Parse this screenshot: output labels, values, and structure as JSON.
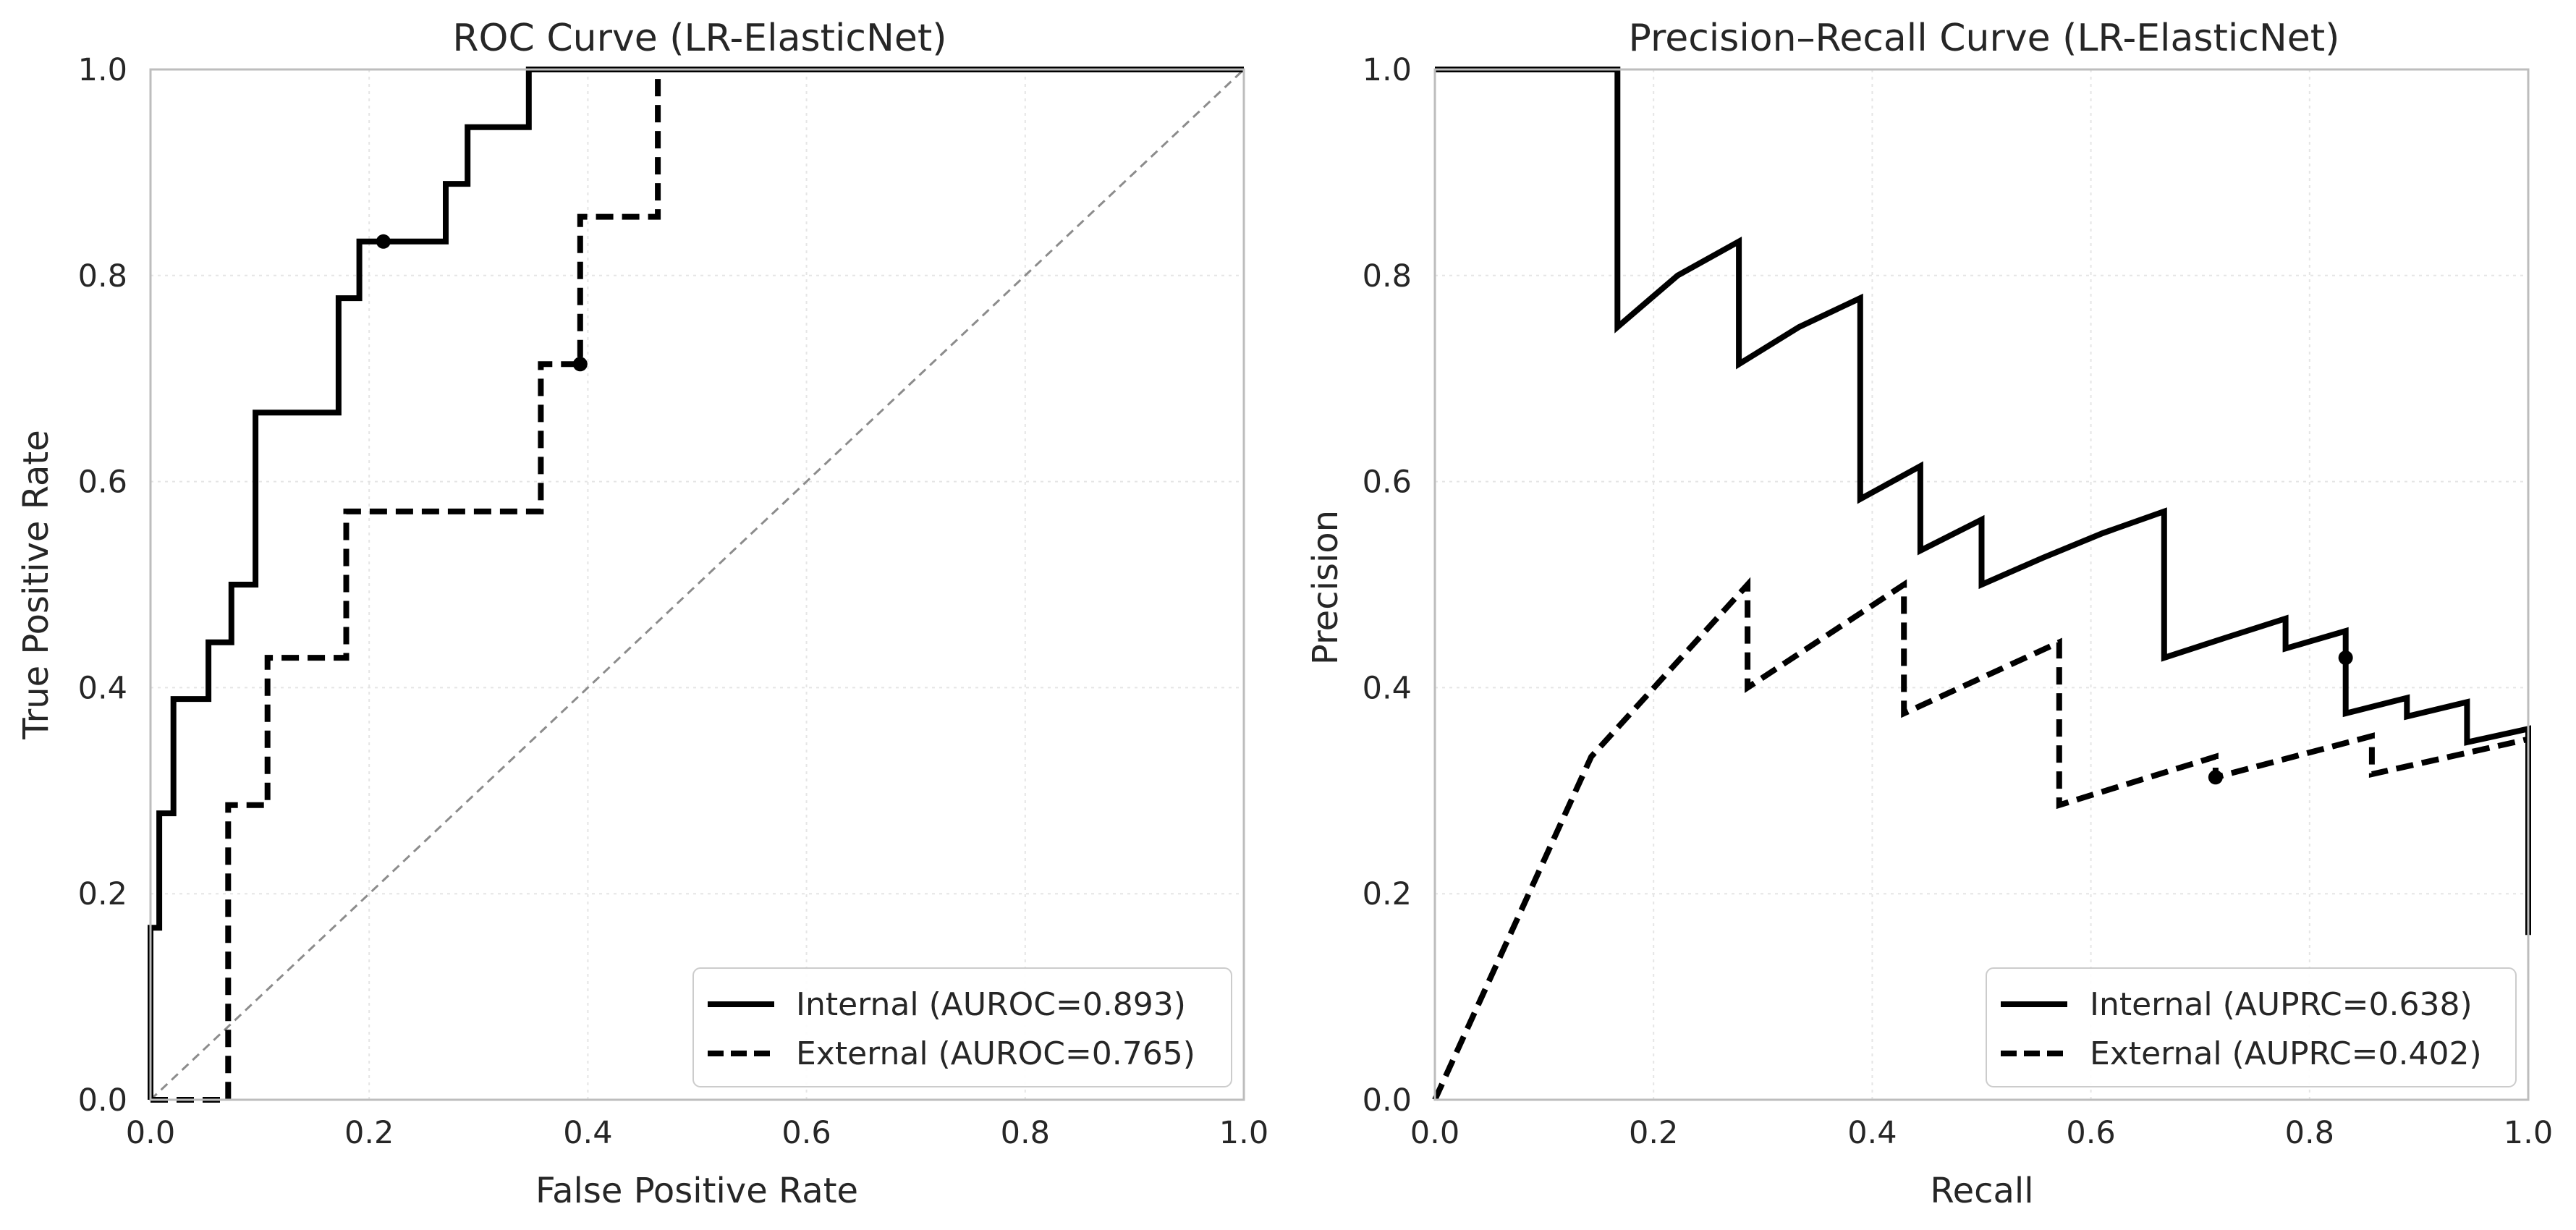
{
  "chart_data": [
    {
      "type": "line",
      "title": "ROC Curve (LR-ElasticNet)",
      "xlabel": "False Positive Rate",
      "ylabel": "True Positive Rate",
      "xlim": [
        0.0,
        1.0
      ],
      "ylim": [
        0.0,
        1.0
      ],
      "xticks": [
        "0.0",
        "0.2",
        "0.4",
        "0.6",
        "0.8",
        "1.0"
      ],
      "yticks": [
        "0.0",
        "0.2",
        "0.4",
        "0.6",
        "0.8",
        "1.0"
      ],
      "grid": true,
      "legend_position": "lower-right",
      "series": [
        {
          "name": "Internal (AUROC=0.893)",
          "line_style": "solid",
          "color": "#000000",
          "x": [
            0.0,
            0.0,
            0.008,
            0.008,
            0.021,
            0.021,
            0.053,
            0.053,
            0.074,
            0.074,
            0.096,
            0.096,
            0.172,
            0.172,
            0.191,
            0.191,
            0.213,
            0.27,
            0.27,
            0.29,
            0.29,
            0.346,
            0.346,
            1.0
          ],
          "y": [
            0.0,
            0.167,
            0.167,
            0.278,
            0.278,
            0.389,
            0.389,
            0.444,
            0.444,
            0.5,
            0.5,
            0.667,
            0.667,
            0.778,
            0.778,
            0.833,
            0.833,
            0.833,
            0.889,
            0.889,
            0.944,
            0.944,
            1.0,
            1.0
          ],
          "marked_point": {
            "x": 0.213,
            "y": 0.833
          }
        },
        {
          "name": "External (AUROC=0.765)",
          "line_style": "dashed",
          "color": "#000000",
          "x": [
            0.0,
            0.071,
            0.071,
            0.107,
            0.107,
            0.179,
            0.179,
            0.357,
            0.357,
            0.393,
            0.393,
            0.464,
            0.464,
            1.0
          ],
          "y": [
            0.0,
            0.0,
            0.286,
            0.286,
            0.429,
            0.429,
            0.571,
            0.571,
            0.714,
            0.714,
            0.857,
            0.857,
            1.0,
            1.0
          ],
          "marked_point": {
            "x": 0.393,
            "y": 0.714
          }
        }
      ],
      "reference_line": {
        "x": [
          0.0,
          1.0
        ],
        "y": [
          0.0,
          1.0
        ],
        "line_style": "dashed",
        "color": "#8c8c8c"
      }
    },
    {
      "type": "line",
      "title": "Precision–Recall Curve (LR-ElasticNet)",
      "xlabel": "Recall",
      "ylabel": "Precision",
      "xlim": [
        0.0,
        1.0
      ],
      "ylim": [
        0.0,
        1.0
      ],
      "xticks": [
        "0.0",
        "0.2",
        "0.4",
        "0.6",
        "0.8",
        "1.0"
      ],
      "yticks": [
        "0.0",
        "0.2",
        "0.4",
        "0.6",
        "0.8",
        "1.0"
      ],
      "grid": true,
      "legend_position": "lower-right",
      "series": [
        {
          "name": "Internal (AUPRC=0.638)",
          "line_style": "solid",
          "color": "#000000",
          "x": [
            0.0,
            0.167,
            0.167,
            0.222,
            0.278,
            0.278,
            0.333,
            0.389,
            0.389,
            0.444,
            0.444,
            0.5,
            0.5,
            0.556,
            0.611,
            0.667,
            0.667,
            0.722,
            0.778,
            0.778,
            0.833,
            0.833,
            0.889,
            0.889,
            0.944,
            0.944,
            1.0,
            1.0
          ],
          "y": [
            1.0,
            1.0,
            0.75,
            0.8,
            0.833,
            0.714,
            0.75,
            0.778,
            0.583,
            0.615,
            0.533,
            0.563,
            0.5,
            0.526,
            0.55,
            0.571,
            0.429,
            0.448,
            0.467,
            0.438,
            0.455,
            0.375,
            0.39,
            0.372,
            0.386,
            0.347,
            0.36,
            0.16
          ],
          "marked_point": {
            "x": 0.833,
            "y": 0.429
          }
        },
        {
          "name": "External (AUPRC=0.402)",
          "line_style": "dashed",
          "color": "#000000",
          "x": [
            0.0,
            0.143,
            0.286,
            0.286,
            0.429,
            0.429,
            0.571,
            0.571,
            0.714,
            0.714,
            0.857,
            0.857,
            1.0
          ],
          "y": [
            0.0,
            0.333,
            0.5,
            0.4,
            0.5,
            0.375,
            0.444,
            0.286,
            0.333,
            0.313,
            0.353,
            0.316,
            0.35
          ],
          "marked_point": {
            "x": 0.714,
            "y": 0.313
          }
        }
      ],
      "reference_line": {
        "x": [
          0.0,
          0.0
        ],
        "y": [
          0.0,
          1.0
        ],
        "line_style": "dashed",
        "color": "#8c8c8c"
      }
    }
  ]
}
